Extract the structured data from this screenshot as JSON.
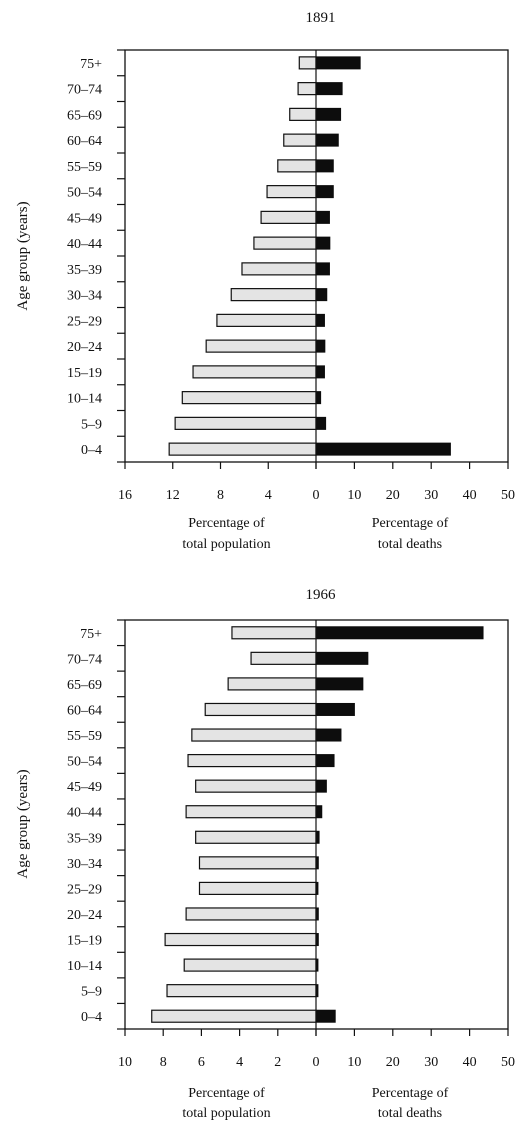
{
  "chart_data": [
    {
      "type": "bar",
      "orientation": "horizontal",
      "title": "1891",
      "ylabel": "Age group (years)",
      "categories": [
        "0–4",
        "5–9",
        "10–14",
        "15–19",
        "20–24",
        "25–29",
        "30–34",
        "35–39",
        "40–44",
        "45–49",
        "50–54",
        "55–59",
        "60–64",
        "65–69",
        "70–74",
        "75+"
      ],
      "left_axis": {
        "label_line1": "Percentage of",
        "label_line2": "total population",
        "ticks": [
          16,
          12,
          8,
          4,
          0
        ],
        "tick_labels": [
          "16",
          "12",
          "8",
          "4",
          "0"
        ],
        "xlim": [
          16,
          0
        ]
      },
      "right_axis": {
        "label_line1": "Percentage of",
        "label_line2": "total deaths",
        "ticks": [
          10,
          20,
          30,
          40,
          50
        ],
        "tick_labels": [
          "10",
          "20",
          "30",
          "40",
          "50"
        ],
        "xlim": [
          0,
          50
        ]
      },
      "series": [
        {
          "key": "population",
          "side": "left",
          "values": [
            12.3,
            11.8,
            11.2,
            10.3,
            9.2,
            8.3,
            7.1,
            6.2,
            5.2,
            4.6,
            4.1,
            3.2,
            2.7,
            2.2,
            1.5,
            1.4
          ]
        },
        {
          "key": "deaths",
          "side": "right",
          "values": [
            35,
            2.5,
            1.2,
            2.2,
            2.3,
            2.2,
            2.8,
            3.5,
            3.6,
            3.5,
            4.5,
            4.5,
            5.8,
            6.4,
            6.8,
            11.5
          ]
        }
      ],
      "colors": {
        "population": "#e4e4e4",
        "deaths": "#0d0d0d"
      },
      "grid": false
    },
    {
      "type": "bar",
      "orientation": "horizontal",
      "title": "1966",
      "ylabel": "Age group (years)",
      "categories": [
        "0–4",
        "5–9",
        "10–14",
        "15–19",
        "20–24",
        "25–29",
        "30–34",
        "35–39",
        "40–44",
        "45–49",
        "50–54",
        "55–59",
        "60–64",
        "65–69",
        "70–74",
        "75+"
      ],
      "left_axis": {
        "label_line1": "Percentage of",
        "label_line2": "total population",
        "ticks": [
          10,
          8,
          6,
          4,
          2,
          0
        ],
        "tick_labels": [
          "10",
          "8",
          "6",
          "4",
          "2",
          "0"
        ],
        "xlim": [
          10,
          0
        ]
      },
      "right_axis": {
        "label_line1": "Percentage of",
        "label_line2": "total deaths",
        "ticks": [
          10,
          20,
          30,
          40,
          50
        ],
        "tick_labels": [
          "10",
          "20",
          "30",
          "40",
          "50"
        ],
        "xlim": [
          0,
          50
        ]
      },
      "series": [
        {
          "key": "population",
          "side": "left",
          "values": [
            8.6,
            7.8,
            6.9,
            7.9,
            6.8,
            6.1,
            6.1,
            6.3,
            6.8,
            6.3,
            6.7,
            6.5,
            5.8,
            4.6,
            3.4,
            4.4
          ]
        },
        {
          "key": "deaths",
          "side": "right",
          "values": [
            5,
            0.5,
            0.5,
            0.6,
            0.6,
            0.5,
            0.6,
            0.8,
            1.5,
            2.7,
            4.7,
            6.5,
            10,
            12.2,
            13.5,
            43.5
          ]
        }
      ],
      "colors": {
        "population": "#e4e4e4",
        "deaths": "#0d0d0d"
      },
      "grid": false
    }
  ]
}
